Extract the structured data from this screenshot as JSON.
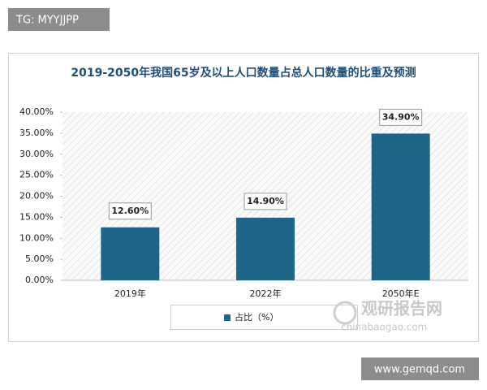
{
  "header": {
    "tag": "TG: MYYJJPP"
  },
  "chart_data": {
    "type": "bar",
    "title": "2019-2050年我国65岁及以上人口数量占总人口数量的比重及预测",
    "categories": [
      "2019年",
      "2022年",
      "2050年E"
    ],
    "series": [
      {
        "name": "占比（%）",
        "color": "#1f6587",
        "values": [
          12.6,
          14.9,
          34.9
        ],
        "value_labels": [
          "12.60%",
          "14.90%",
          "34.90%"
        ]
      }
    ],
    "ylim": [
      0,
      40
    ],
    "yticks": [
      {
        "value": 0,
        "label": "0.00%"
      },
      {
        "value": 5,
        "label": "5.00%"
      },
      {
        "value": 10,
        "label": "10.00%"
      },
      {
        "value": 15,
        "label": "15.00%"
      },
      {
        "value": 20,
        "label": "20.00%"
      },
      {
        "value": 25,
        "label": "25.00%"
      },
      {
        "value": 30,
        "label": "30.00%"
      },
      {
        "value": 35,
        "label": "35.00%"
      },
      {
        "value": 40,
        "label": "40.00%"
      }
    ],
    "legend": "bottom"
  },
  "watermark": {
    "name": "观研报告网",
    "url": "chinabaogao.com"
  },
  "footer": {
    "url": "www.gemqd.com"
  }
}
